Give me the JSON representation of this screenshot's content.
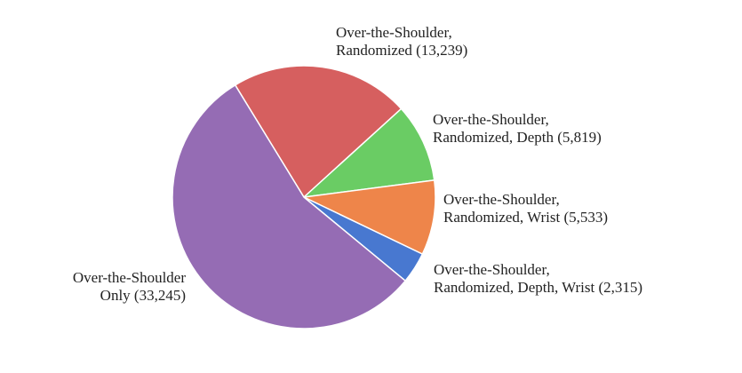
{
  "chart_data": {
    "type": "pie",
    "title": "",
    "slices": [
      {
        "label_lines": [
          "Over-the-Shoulder,",
          "Randomized (13,239)"
        ],
        "value": 13239,
        "color": "#d65f5f"
      },
      {
        "label_lines": [
          "Over-the-Shoulder,",
          "Randomized, Depth (5,819)"
        ],
        "value": 5819,
        "color": "#6acc64"
      },
      {
        "label_lines": [
          "Over-the-Shoulder,",
          "Randomized, Wrist (5,533)"
        ],
        "value": 5533,
        "color": "#ee854a"
      },
      {
        "label_lines": [
          "Over-the-Shoulder,",
          "Randomized, Depth, Wrist (2,315)"
        ],
        "value": 2315,
        "color": "#4878d0"
      },
      {
        "label_lines": [
          "Over-the-Shoulder",
          "Only (33,245)"
        ],
        "value": 33245,
        "color": "#956cb4"
      }
    ]
  }
}
